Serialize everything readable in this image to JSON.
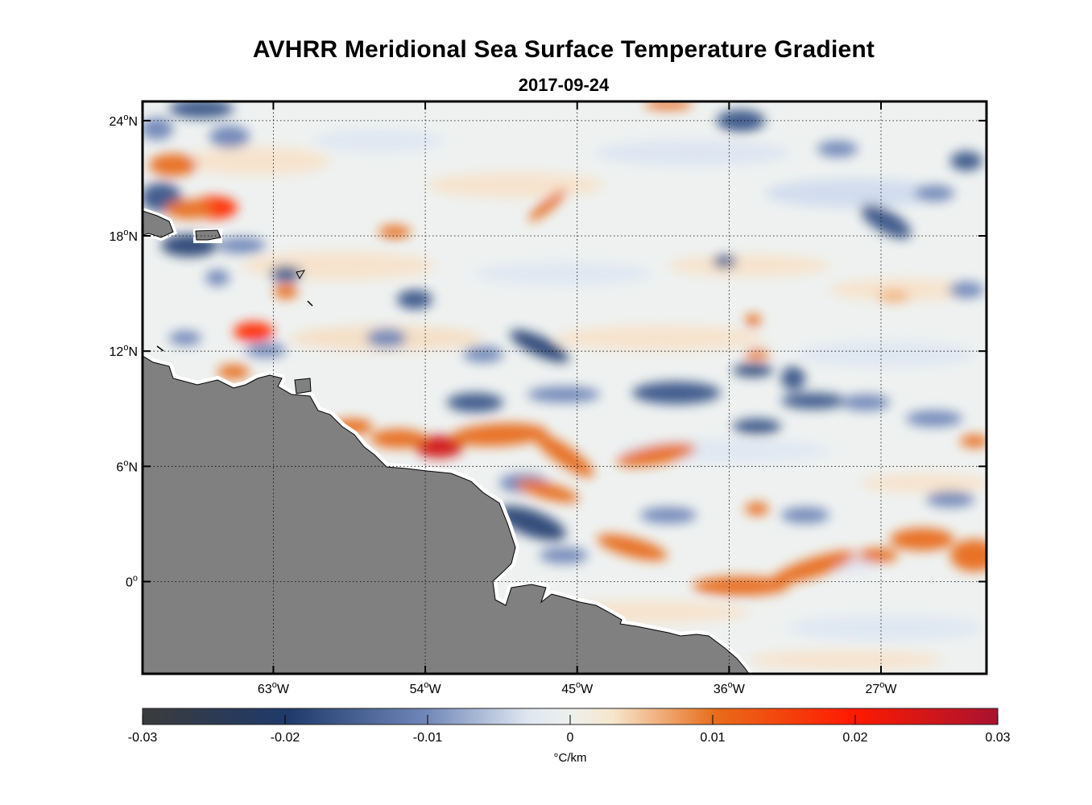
{
  "title": "AVHRR Meridional Sea Surface Temperature Gradient",
  "subtitle": "2017-09-24",
  "map": {
    "lon_range": [
      -70.75,
      -20.75
    ],
    "lat_range": [
      -4.8,
      25
    ],
    "lon_ticks": [
      {
        "value": -63,
        "label": "63",
        "suffix": "W"
      },
      {
        "value": -54,
        "label": "54",
        "suffix": "W"
      },
      {
        "value": -45,
        "label": "45",
        "suffix": "W"
      },
      {
        "value": -36,
        "label": "36",
        "suffix": "W"
      },
      {
        "value": -27,
        "label": "27",
        "suffix": "W"
      }
    ],
    "lat_ticks": [
      {
        "value": 24,
        "label": "24",
        "suffix": "N"
      },
      {
        "value": 18,
        "label": "18",
        "suffix": "N"
      },
      {
        "value": 12,
        "label": "12",
        "suffix": "N"
      },
      {
        "value": 6,
        "label": "6",
        "suffix": "N"
      },
      {
        "value": 0,
        "label": "0",
        "suffix": ""
      }
    ],
    "grid": "dotted",
    "land_color": "#808080",
    "coast_color": "#000000"
  },
  "colorbar": {
    "min": -0.03,
    "max": 0.03,
    "ticks": [
      "-0.03",
      "-0.02",
      "-0.01",
      "0",
      "0.01",
      "0.02",
      "0.03"
    ],
    "unit_label": "°C/km",
    "colors": [
      "#3b3b3b",
      "#1f3a6b",
      "#6f86b8",
      "#e9ecef",
      "#f3e2c6",
      "#e86c1a",
      "#ff1a00",
      "#a81230"
    ]
  }
}
